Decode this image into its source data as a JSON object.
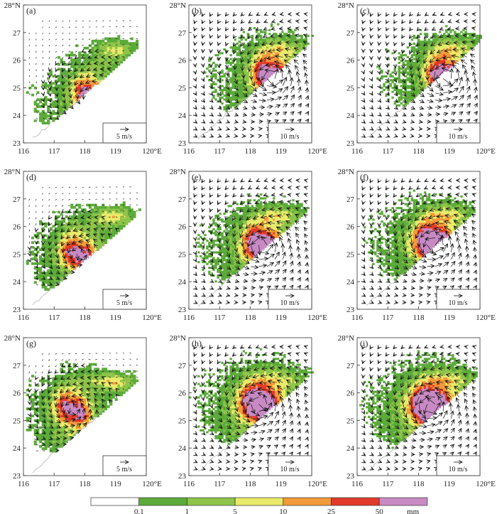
{
  "figure": {
    "panels": [
      {
        "label": "(a)",
        "ref_vector": "5 m/s"
      },
      {
        "label": "(b)",
        "ref_vector": "10 m/s"
      },
      {
        "label": "(c)",
        "ref_vector": "10 m/s"
      },
      {
        "label": "(d)",
        "ref_vector": "5 m/s"
      },
      {
        "label": "(e)",
        "ref_vector": "10 m/s"
      },
      {
        "label": "(f)",
        "ref_vector": "10 m/s"
      },
      {
        "label": "(g)",
        "ref_vector": "5 m/s"
      },
      {
        "label": "(h)",
        "ref_vector": "10 m/s"
      },
      {
        "label": "(i)",
        "ref_vector": "10 m/s"
      }
    ],
    "lat_ticks": [
      "23",
      "24",
      "25",
      "26",
      "27",
      "28°N"
    ],
    "lon_ticks": [
      "116",
      "117",
      "118",
      "119",
      "120°E"
    ],
    "colorbar": {
      "thresholds": [
        "0.1",
        "1",
        "5",
        "10",
        "25",
        "50"
      ],
      "unit": "mm",
      "colors": [
        "#ffffff",
        "#5cab3a",
        "#8ec44a",
        "#eaea6a",
        "#f39a3a",
        "#e23a2a",
        "#c98ac4"
      ]
    }
  }
}
